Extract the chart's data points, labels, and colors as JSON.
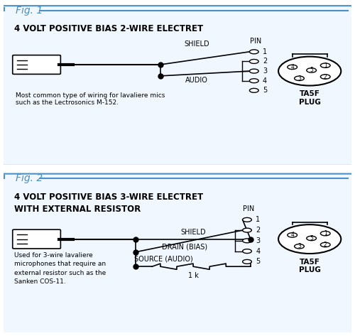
{
  "fig_bg": "#ffffff",
  "border_color": "#4a90c4",
  "title_color": "#4a90c4",
  "text_color": "#000000",
  "line_color": "#000000",
  "fig1": {
    "label": "Fig. 1",
    "title": "4 VOLT POSITIVE BIAS 2-WIRE ELECTRET",
    "note": "Most common type of wiring for lavaliere mics\nsuch as the Lectrosonics M-152.",
    "wires": [
      "SHIELD",
      "AUDIO"
    ],
    "pin_label": "PIN",
    "pins": [
      "1",
      "2",
      "3",
      "4",
      "5"
    ],
    "connected_pins": [
      1,
      3
    ],
    "shield_pin": 1,
    "audio_pin": 3
  },
  "fig2": {
    "label": "Fig. 2",
    "title": "4 VOLT POSITIVE BIAS 3-WIRE ELECTRET\nWITH EXTERNAL RESISTOR",
    "note": "Used for 3-wire lavaliere\nmicrophones that require an\nexternal resistor such as the\nSanken COS-11.",
    "wires": [
      "SHIELD",
      "DRAIN (BIAS)",
      "SOURCE (AUDIO)"
    ],
    "pin_label": "PIN",
    "pins": [
      "1",
      "2",
      "3",
      "4",
      "5"
    ],
    "resistor_label": "1 k",
    "shield_pin": 1,
    "drain_pin": 2,
    "source_pin": 5
  },
  "plug_label": "TA5F\nPLUG"
}
